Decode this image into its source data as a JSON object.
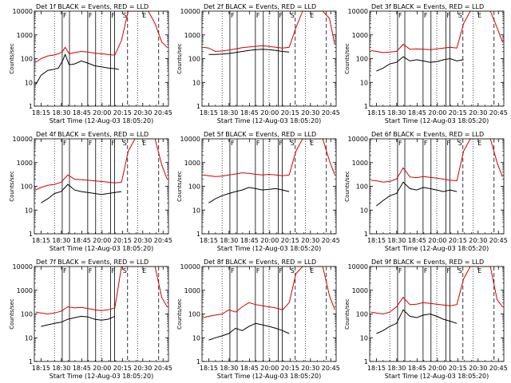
{
  "figure": {
    "type": "line",
    "x_tick_labels": [
      "18:15",
      "18:30",
      "18:45",
      "20:00",
      "20:15",
      "20:30",
      "20:45"
    ],
    "y_tick_labels": [
      "1",
      "10",
      "100",
      "1000",
      "10000"
    ],
    "ylabel": "Counts/sec",
    "xlabel": "Start Time (12-Aug-03 18:05:20)",
    "y_scale": "log",
    "ylim": [
      1,
      10000
    ],
    "event_markers": {
      "F": [
        0.208,
        0.398,
        0.568
      ],
      "S": 0.695,
      "E": 0.84
    },
    "solid_lines": [
      0.208,
      0.262,
      0.398,
      0.457,
      0.568,
      0.598
    ],
    "dashed_lines": [
      0.695,
      0.927
    ],
    "dotted_lines": [
      0.15,
      0.5,
      0.77
    ]
  },
  "chart_data": [
    {
      "type": "line",
      "title": "Det 1f BLACK = Events, RED = LLD",
      "series": [
        {
          "name": "Events",
          "color": "#000000",
          "x": [
            0.01,
            0.05,
            0.1,
            0.14,
            0.18,
            0.21,
            0.23,
            0.26,
            0.3,
            0.35,
            0.4,
            0.45,
            0.5,
            0.55,
            0.6,
            0.63
          ],
          "y": [
            8,
            20,
            32,
            35,
            40,
            80,
            150,
            55,
            60,
            80,
            65,
            50,
            45,
            40,
            38,
            35
          ]
        },
        {
          "name": "LLD",
          "color": "#d40000",
          "x": [
            0.01,
            0.05,
            0.1,
            0.14,
            0.18,
            0.21,
            0.23,
            0.26,
            0.3,
            0.35,
            0.4,
            0.45,
            0.5,
            0.55,
            0.6,
            0.65,
            0.7,
            0.75,
            0.8,
            0.85,
            0.9,
            0.95,
            0.99
          ],
          "y": [
            70,
            100,
            130,
            140,
            160,
            200,
            300,
            160,
            180,
            200,
            190,
            170,
            160,
            150,
            140,
            600,
            10000,
            10000,
            10000,
            10000,
            3000,
            500,
            300
          ]
        }
      ]
    },
    {
      "type": "line",
      "title": "Det 2f BLACK = Events, RED = LLD",
      "series": [
        {
          "name": "Events",
          "color": "#000000",
          "x": [
            0.05,
            0.1,
            0.15,
            0.2,
            0.25,
            0.3,
            0.35,
            0.4,
            0.45,
            0.5,
            0.55,
            0.6,
            0.65
          ],
          "y": [
            150,
            150,
            155,
            165,
            180,
            200,
            220,
            240,
            250,
            240,
            220,
            200,
            190
          ]
        },
        {
          "name": "LLD",
          "color": "#d40000",
          "x": [
            0.01,
            0.05,
            0.1,
            0.15,
            0.2,
            0.25,
            0.3,
            0.35,
            0.4,
            0.45,
            0.5,
            0.55,
            0.6,
            0.65,
            0.7,
            0.75,
            0.8,
            0.85,
            0.9,
            0.95,
            0.99
          ],
          "y": [
            300,
            280,
            200,
            210,
            230,
            260,
            290,
            310,
            330,
            350,
            330,
            300,
            280,
            300,
            2000,
            10000,
            10000,
            10000,
            10000,
            5000,
            400
          ]
        }
      ]
    },
    {
      "type": "line",
      "title": "Det 3f BLACK = Events, RED = LLD",
      "series": [
        {
          "name": "Events",
          "color": "#000000",
          "x": [
            0.05,
            0.1,
            0.15,
            0.2,
            0.25,
            0.3,
            0.35,
            0.4,
            0.45,
            0.5,
            0.55,
            0.6,
            0.65,
            0.7
          ],
          "y": [
            30,
            40,
            60,
            70,
            120,
            80,
            90,
            80,
            70,
            75,
            90,
            100,
            80,
            90
          ]
        },
        {
          "name": "LLD",
          "color": "#d40000",
          "x": [
            0.01,
            0.05,
            0.1,
            0.15,
            0.2,
            0.25,
            0.3,
            0.35,
            0.4,
            0.45,
            0.5,
            0.55,
            0.6,
            0.65,
            0.7,
            0.75,
            0.8,
            0.85,
            0.9,
            0.95,
            0.99
          ],
          "y": [
            220,
            200,
            180,
            190,
            200,
            400,
            250,
            260,
            250,
            240,
            260,
            280,
            300,
            280,
            3000,
            10000,
            10000,
            10000,
            10000,
            2000,
            500
          ]
        }
      ]
    },
    {
      "type": "line",
      "title": "Det 4f BLACK = Events, RED = LLD",
      "series": [
        {
          "name": "Events",
          "color": "#000000",
          "x": [
            0.05,
            0.1,
            0.15,
            0.2,
            0.25,
            0.3,
            0.35,
            0.4,
            0.45,
            0.5,
            0.55,
            0.6,
            0.65
          ],
          "y": [
            20,
            30,
            50,
            60,
            120,
            70,
            60,
            55,
            50,
            45,
            50,
            55,
            60
          ]
        },
        {
          "name": "LLD",
          "color": "#d40000",
          "x": [
            0.01,
            0.05,
            0.1,
            0.15,
            0.2,
            0.25,
            0.3,
            0.35,
            0.4,
            0.45,
            0.5,
            0.55,
            0.6,
            0.65,
            0.7,
            0.75,
            0.8,
            0.85,
            0.9,
            0.95,
            0.99
          ],
          "y": [
            70,
            90,
            110,
            120,
            150,
            300,
            200,
            190,
            180,
            170,
            160,
            150,
            140,
            150,
            3000,
            10000,
            10000,
            10000,
            10000,
            800,
            200
          ]
        }
      ]
    },
    {
      "type": "line",
      "title": "Det 5f BLACK = Events, RED = LLD",
      "series": [
        {
          "name": "Events",
          "color": "#000000",
          "x": [
            0.05,
            0.1,
            0.15,
            0.2,
            0.25,
            0.3,
            0.35,
            0.4,
            0.45,
            0.5,
            0.55,
            0.6,
            0.65
          ],
          "y": [
            20,
            30,
            40,
            50,
            60,
            70,
            90,
            80,
            70,
            75,
            80,
            70,
            60
          ]
        },
        {
          "name": "LLD",
          "color": "#d40000",
          "x": [
            0.01,
            0.05,
            0.1,
            0.15,
            0.2,
            0.25,
            0.3,
            0.35,
            0.4,
            0.45,
            0.5,
            0.55,
            0.6,
            0.65,
            0.7,
            0.75,
            0.8,
            0.85,
            0.9,
            0.95,
            0.99
          ],
          "y": [
            300,
            280,
            260,
            270,
            300,
            330,
            370,
            350,
            320,
            300,
            320,
            300,
            280,
            300,
            3000,
            10000,
            10000,
            10000,
            10000,
            1200,
            300
          ]
        }
      ]
    },
    {
      "type": "line",
      "title": "Det 6f BLACK = Events, RED = LLD",
      "series": [
        {
          "name": "Events",
          "color": "#000000",
          "x": [
            0.05,
            0.1,
            0.15,
            0.2,
            0.25,
            0.3,
            0.35,
            0.4,
            0.45,
            0.5,
            0.55,
            0.6,
            0.65
          ],
          "y": [
            15,
            25,
            40,
            50,
            150,
            80,
            70,
            90,
            80,
            70,
            60,
            70,
            60
          ]
        },
        {
          "name": "LLD",
          "color": "#d40000",
          "x": [
            0.01,
            0.05,
            0.1,
            0.15,
            0.2,
            0.25,
            0.3,
            0.35,
            0.4,
            0.45,
            0.5,
            0.55,
            0.6,
            0.65,
            0.7,
            0.75,
            0.8,
            0.85,
            0.9,
            0.95,
            0.99
          ],
          "y": [
            180,
            170,
            150,
            160,
            200,
            600,
            250,
            230,
            260,
            240,
            220,
            200,
            180,
            170,
            3000,
            10000,
            10000,
            10000,
            10000,
            1000,
            250
          ]
        }
      ]
    },
    {
      "type": "line",
      "title": "Det 7f BLACK = Events, RED = LLD",
      "series": [
        {
          "name": "Events",
          "color": "#000000",
          "x": [
            0.05,
            0.1,
            0.15,
            0.2,
            0.25,
            0.3,
            0.35,
            0.4,
            0.45,
            0.5,
            0.55,
            0.6
          ],
          "y": [
            30,
            35,
            40,
            45,
            60,
            70,
            80,
            75,
            60,
            55,
            60,
            80
          ]
        },
        {
          "name": "LLD",
          "color": "#d40000",
          "x": [
            0.01,
            0.05,
            0.1,
            0.15,
            0.2,
            0.25,
            0.3,
            0.35,
            0.4,
            0.45,
            0.5,
            0.55,
            0.6,
            0.65,
            0.7,
            0.75,
            0.8,
            0.85,
            0.9,
            0.95,
            0.99
          ],
          "y": [
            120,
            110,
            100,
            110,
            130,
            200,
            180,
            190,
            170,
            150,
            140,
            150,
            180,
            10000,
            10000,
            10000,
            10000,
            10000,
            10000,
            500,
            200
          ]
        }
      ]
    },
    {
      "type": "line",
      "title": "Det 8f BLACK = Events, RED = LLD",
      "series": [
        {
          "name": "Events",
          "color": "#000000",
          "x": [
            0.05,
            0.1,
            0.15,
            0.2,
            0.25,
            0.3,
            0.35,
            0.4,
            0.45,
            0.5,
            0.55,
            0.6,
            0.65
          ],
          "y": [
            8,
            10,
            12,
            15,
            25,
            20,
            30,
            40,
            35,
            30,
            25,
            20,
            15
          ]
        },
        {
          "name": "LLD",
          "color": "#d40000",
          "x": [
            0.01,
            0.05,
            0.1,
            0.15,
            0.2,
            0.25,
            0.3,
            0.35,
            0.4,
            0.45,
            0.5,
            0.55,
            0.6,
            0.65,
            0.7,
            0.75,
            0.8,
            0.85,
            0.9,
            0.95,
            0.99
          ],
          "y": [
            70,
            80,
            90,
            100,
            150,
            120,
            200,
            300,
            250,
            220,
            200,
            180,
            150,
            300,
            5000,
            10000,
            10000,
            10000,
            10000,
            600,
            150
          ]
        }
      ]
    },
    {
      "type": "line",
      "title": "Det 9f BLACK = Events, RED = LLD",
      "series": [
        {
          "name": "Events",
          "color": "#000000",
          "x": [
            0.05,
            0.1,
            0.15,
            0.2,
            0.25,
            0.3,
            0.35,
            0.4,
            0.45,
            0.5,
            0.55,
            0.6,
            0.65
          ],
          "y": [
            15,
            20,
            30,
            40,
            150,
            80,
            70,
            90,
            100,
            80,
            60,
            50,
            40
          ]
        },
        {
          "name": "LLD",
          "color": "#d40000",
          "x": [
            0.01,
            0.05,
            0.1,
            0.15,
            0.2,
            0.25,
            0.3,
            0.35,
            0.4,
            0.45,
            0.5,
            0.55,
            0.6,
            0.65,
            0.7,
            0.75,
            0.8,
            0.85,
            0.9,
            0.95,
            0.99
          ],
          "y": [
            120,
            110,
            100,
            120,
            200,
            500,
            250,
            260,
            300,
            280,
            260,
            240,
            220,
            250,
            3000,
            10000,
            10000,
            10000,
            10000,
            400,
            200
          ]
        }
      ]
    }
  ]
}
